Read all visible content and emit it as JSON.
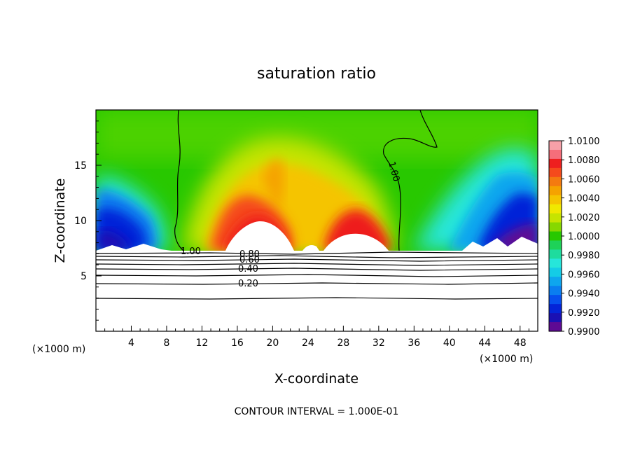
{
  "chart_data": {
    "type": "heatmap",
    "title": "saturation ratio",
    "xlabel": "X-coordinate",
    "ylabel": "Z-coordinate",
    "x_unit_label": "(×1000 m)",
    "x_ticks": [
      4,
      8,
      12,
      16,
      20,
      24,
      28,
      32,
      36,
      40,
      44,
      48
    ],
    "y_ticks": [
      5,
      10,
      15
    ],
    "xlim": [
      0,
      50
    ],
    "ylim": [
      0,
      20
    ],
    "footer": "CONTOUR INTERVAL = 1.000E-01",
    "colorbar": {
      "levels": [
        "1.0100",
        "1.0080",
        "1.0060",
        "1.0040",
        "1.0020",
        "1.0000",
        "0.9980",
        "0.9960",
        "0.9940",
        "0.9920",
        "0.9900"
      ],
      "colors": [
        "#f6a0a8",
        "#f56e7a",
        "#ee1f1f",
        "#f54a1c",
        "#f47a10",
        "#f5a200",
        "#f5c400",
        "#f0e800",
        "#c6e400",
        "#86d800",
        "#28c800",
        "#1ed258",
        "#1edc9e",
        "#26e6da",
        "#14cce6",
        "#0ea6ee",
        "#0a7ef0",
        "#0650ee",
        "#0424d8",
        "#1a10b4",
        "#5e0a94"
      ]
    },
    "contour_labels": [
      "1.00",
      "1.00",
      "0.80",
      "0.60",
      "0.40",
      "0.20"
    ]
  }
}
